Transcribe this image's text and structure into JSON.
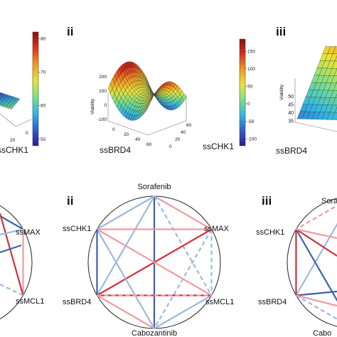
{
  "colors": {
    "colormap": [
      "#2b1d8f",
      "#2f5fd0",
      "#2fb7e6",
      "#78e08a",
      "#e8e43a",
      "#f39a1e",
      "#e0301c",
      "#8b0e0e"
    ],
    "red_solid": "#d0303a",
    "red_light": "#ee9ca4",
    "blue_solid": "#3a62b0",
    "blue_light": "#9db9df",
    "circle": "#222222"
  },
  "chart_data": [
    {
      "type": "surface",
      "panel": "i (top, partial)",
      "axis_labels": [
        "ssCHK1"
      ],
      "tick_labels": [
        "20",
        "0"
      ],
      "colorbar": {
        "ticks": [
          "80",
          "70",
          "60",
          "50"
        ],
        "range": [
          48,
          82
        ]
      }
    },
    {
      "type": "surface",
      "panel": "ii (top)",
      "roman": "ii",
      "xlabel": "ssBRD4",
      "ylabel": "ssCHK1",
      "zlabel": "Viability",
      "zticks": [
        "200",
        "100",
        "0",
        "-100"
      ],
      "xticks": [
        "0",
        "20",
        "40",
        "60"
      ],
      "yticks": [
        "0",
        "20",
        "40",
        "60"
      ],
      "colorbar": {
        "ticks": [
          "150",
          "100",
          "50",
          "0",
          "-50",
          "-100"
        ],
        "range": [
          -120,
          185
        ]
      }
    },
    {
      "type": "surface",
      "panel": "iii (top, partial)",
      "roman": "iii",
      "xlabel": "ssBRD4",
      "zlabel": "Viability",
      "zticks": [
        "50",
        "45",
        "40",
        "35"
      ]
    },
    {
      "type": "network",
      "panel": "i (bottom, partial)",
      "nodes": [
        "ssMAX",
        "ssMCL1"
      ]
    },
    {
      "type": "network",
      "panel": "ii (bottom)",
      "roman": "ii",
      "nodes": [
        "Sorafenib",
        "ssMAX",
        "ssMCL1",
        "Cabozantinib",
        "ssBRD4",
        "ssCHK1"
      ],
      "edges": [
        {
          "from": "Sorafenib",
          "to": "ssMAX",
          "color": "red_light",
          "style": "solid"
        },
        {
          "from": "Sorafenib",
          "to": "ssMCL1",
          "color": "blue_light",
          "style": "dashed"
        },
        {
          "from": "Sorafenib",
          "to": "Cabozantinib",
          "color": "blue_solid",
          "style": "solid"
        },
        {
          "from": "Sorafenib",
          "to": "ssBRD4",
          "color": "blue_light",
          "style": "solid"
        },
        {
          "from": "Sorafenib",
          "to": "ssCHK1",
          "color": "blue_light",
          "style": "solid"
        },
        {
          "from": "ssMAX",
          "to": "ssMCL1",
          "color": "blue_light",
          "style": "dashed"
        },
        {
          "from": "ssMAX",
          "to": "Cabozantinib",
          "color": "blue_light",
          "style": "dashed"
        },
        {
          "from": "ssMAX",
          "to": "ssBRD4",
          "color": "red_solid",
          "style": "solid"
        },
        {
          "from": "ssMAX",
          "to": "ssCHK1",
          "color": "red_light",
          "style": "solid"
        },
        {
          "from": "ssMCL1",
          "to": "Cabozantinib",
          "color": "blue_light",
          "style": "solid"
        },
        {
          "from": "ssMCL1",
          "to": "ssBRD4",
          "color": "red_solid",
          "style": "solid"
        },
        {
          "from": "ssMCL1",
          "to": "ssCHK1",
          "color": "red_light",
          "style": "solid"
        },
        {
          "from": "Cabozantinib",
          "to": "ssBRD4",
          "color": "red_light",
          "style": "solid"
        },
        {
          "from": "Cabozantinib",
          "to": "ssCHK1",
          "color": "blue_light",
          "style": "solid"
        },
        {
          "from": "ssBRD4",
          "to": "ssCHK1",
          "color": "blue_solid",
          "style": "solid"
        },
        {
          "from": "ssBRD4",
          "to": "ssMCL1",
          "color": "red_light",
          "style": "dashed"
        }
      ]
    },
    {
      "type": "network",
      "panel": "iii (bottom, partial)",
      "roman": "iii",
      "nodes": [
        "Sorafenib",
        "ssCHK1",
        "ssBRD4",
        "Cabozantinib"
      ],
      "node_text": [
        "Sora",
        "ssCHK1",
        "ssBRD4",
        "Cabo"
      ]
    }
  ]
}
